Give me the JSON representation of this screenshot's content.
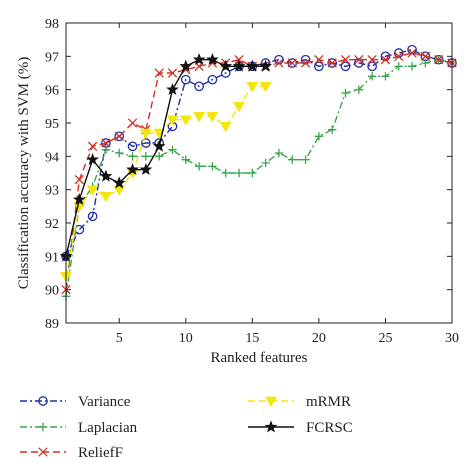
{
  "chart_data": {
    "type": "line",
    "xlabel": "Ranked features",
    "ylabel": "Classification accuracy with SVM (%)",
    "xlim": [
      1,
      30
    ],
    "ylim": [
      89,
      98
    ],
    "xticks": [
      5,
      10,
      15,
      20,
      25,
      30
    ],
    "yticks": [
      89,
      90,
      91,
      92,
      93,
      94,
      95,
      96,
      97,
      98
    ],
    "grid": false,
    "legend_position": "bottom, below plot, two columns",
    "series": [
      {
        "name": "Variance",
        "color": "#1f2fa0",
        "dash": "dashdot",
        "marker": "circle",
        "x": [
          1,
          2,
          3,
          4,
          5,
          6,
          7,
          8,
          9,
          10,
          11,
          12,
          13,
          14,
          15,
          16,
          17,
          18,
          19,
          20,
          21,
          22,
          23,
          24,
          25,
          26,
          27,
          28,
          29,
          30
        ],
        "values": [
          91.0,
          91.8,
          92.2,
          94.4,
          94.6,
          94.3,
          94.4,
          94.4,
          94.9,
          96.3,
          96.1,
          96.3,
          96.5,
          96.7,
          96.7,
          96.8,
          96.9,
          96.8,
          96.9,
          96.7,
          96.8,
          96.7,
          96.8,
          96.7,
          97.0,
          97.1,
          97.2,
          97.0,
          96.9,
          96.8
        ]
      },
      {
        "name": "Laplacian",
        "color": "#3aa64a",
        "dash": "dashdot",
        "marker": "plus",
        "x": [
          1,
          2,
          3,
          4,
          5,
          6,
          7,
          8,
          9,
          10,
          11,
          12,
          13,
          14,
          15,
          16,
          17,
          18,
          19,
          20,
          21,
          22,
          23,
          24,
          25,
          26,
          27,
          28,
          29,
          30
        ],
        "values": [
          89.8,
          92.5,
          93.1,
          94.2,
          94.1,
          94.0,
          94.0,
          94.0,
          94.2,
          93.9,
          93.7,
          93.7,
          93.5,
          93.5,
          93.5,
          93.8,
          94.1,
          93.9,
          93.9,
          94.6,
          94.8,
          95.9,
          96.0,
          96.4,
          96.4,
          96.7,
          96.7,
          96.8,
          96.9,
          96.8
        ]
      },
      {
        "name": "ReliefF",
        "color": "#d03020",
        "dash": "dashed",
        "marker": "x",
        "x": [
          1,
          2,
          3,
          4,
          5,
          6,
          7,
          8,
          9,
          10,
          11,
          12,
          13,
          14,
          15,
          16,
          17,
          18,
          19,
          20,
          21,
          22,
          23,
          24,
          25,
          26,
          27,
          28,
          29,
          30
        ],
        "values": [
          90.0,
          93.3,
          94.3,
          94.4,
          94.6,
          95.0,
          94.8,
          96.5,
          96.5,
          96.6,
          96.7,
          96.8,
          96.8,
          96.9,
          96.7,
          96.7,
          96.8,
          96.8,
          96.8,
          96.9,
          96.8,
          96.9,
          96.9,
          96.9,
          96.9,
          97.0,
          97.1,
          97.0,
          96.9,
          96.8
        ]
      },
      {
        "name": "mRMR",
        "color": "#f3e60c",
        "dash": "dashed",
        "marker": "triangle-down",
        "x": [
          1,
          2,
          3,
          4,
          5,
          6,
          7,
          8,
          9,
          10,
          11,
          12,
          13,
          14,
          15,
          16
        ],
        "values": [
          90.4,
          92.5,
          93.0,
          92.8,
          93.0,
          93.5,
          94.7,
          94.7,
          95.1,
          95.1,
          95.2,
          95.2,
          94.9,
          95.5,
          96.1,
          96.1
        ]
      },
      {
        "name": "FCRSC",
        "color": "#111111",
        "dash": "solid",
        "marker": "star",
        "x": [
          1,
          2,
          3,
          4,
          5,
          6,
          7,
          8,
          9,
          10,
          11,
          12,
          13,
          14,
          15,
          16
        ],
        "values": [
          91.0,
          92.7,
          93.9,
          93.4,
          93.2,
          93.6,
          93.6,
          94.3,
          96.0,
          96.7,
          96.9,
          96.9,
          96.7,
          96.7,
          96.7,
          96.7
        ]
      }
    ]
  }
}
